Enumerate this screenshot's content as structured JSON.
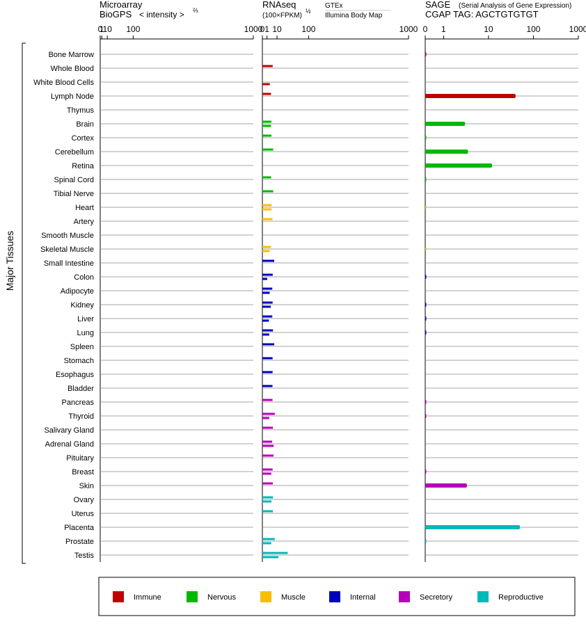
{
  "chart_data": {
    "type": "bar",
    "y_axis_label": "Major Tissues",
    "tissues": [
      "Bone Marrow",
      "Whole Blood",
      "White Blood Cells",
      "Lymph Node",
      "Thymus",
      "Brain",
      "Cortex",
      "Cerebellum",
      "Retina",
      "Spinal Cord",
      "Tibial Nerve",
      "Heart",
      "Artery",
      "Smooth Muscle",
      "Skeletal Muscle",
      "Small Intestine",
      "Colon",
      "Adipocyte",
      "Kidney",
      "Liver",
      "Lung",
      "Spleen",
      "Stomach",
      "Esophagus",
      "Bladder",
      "Pancreas",
      "Thyroid",
      "Salivary Gland",
      "Adrenal Gland",
      "Pituitary",
      "Breast",
      "Skin",
      "Ovary",
      "Uterus",
      "Placenta",
      "Prostate",
      "Testis"
    ],
    "tissue_groups": [
      "Immune",
      "Immune",
      "Immune",
      "Immune",
      "Immune",
      "Nervous",
      "Nervous",
      "Nervous",
      "Nervous",
      "Nervous",
      "Nervous",
      "Muscle",
      "Muscle",
      "Muscle",
      "Muscle",
      "Internal",
      "Internal",
      "Internal",
      "Internal",
      "Internal",
      "Internal",
      "Internal",
      "Internal",
      "Internal",
      "Internal",
      "Secretory",
      "Secretory",
      "Secretory",
      "Secretory",
      "Secretory",
      "Secretory",
      "Secretory",
      "Reproductive",
      "Reproductive",
      "Reproductive",
      "Reproductive",
      "Reproductive"
    ],
    "panels": [
      {
        "id": "microarray",
        "title_line1": "Microarray",
        "title_line2": "BioGPS",
        "unit_label": "< intensity >",
        "unit_superscript": "⅔",
        "tick_labels": [
          "0",
          "1",
          "10",
          "100",
          "1000"
        ],
        "values": [
          null,
          null,
          null,
          null,
          null,
          null,
          null,
          null,
          null,
          null,
          null,
          null,
          null,
          null,
          null,
          null,
          null,
          null,
          null,
          null,
          null,
          null,
          null,
          null,
          null,
          null,
          null,
          null,
          null,
          null,
          null,
          null,
          null,
          null,
          null,
          null,
          null
        ]
      },
      {
        "id": "rnaseq",
        "title_line1": "RNAseq",
        "unit_label": "(100×FPKM)",
        "unit_superscript": "½",
        "tick_labels": [
          "0",
          "1",
          "10",
          "100",
          "1000"
        ],
        "series": [
          {
            "name": "GTEx",
            "values": [
              null,
              5.0,
              null,
              3.5,
              null,
              3.8,
              3.9,
              5.5,
              null,
              3.6,
              5.5,
              4.0,
              4.8,
              null,
              3.5,
              6.6,
              5.0,
              4.6,
              4.9,
              4.6,
              5.3,
              6.6,
              4.9,
              4.9,
              4.8,
              4.8,
              7.2,
              5.2,
              4.5,
              5.8,
              4.9,
              5.1,
              5.3,
              5.2,
              null,
              7.2,
              30.0
            ]
          },
          {
            "name": "Illumina Body Map",
            "values": [
              null,
              null,
              2.6,
              null,
              null,
              3.5,
              null,
              null,
              null,
              null,
              null,
              3.8,
              null,
              null,
              2.5,
              null,
              1.1,
              2.5,
              3.3,
              2.0,
              2.2,
              null,
              null,
              null,
              null,
              null,
              2.2,
              null,
              6.0,
              null,
              3.7,
              null,
              3.9,
              null,
              null,
              3.7,
              12.0
            ]
          }
        ]
      },
      {
        "id": "sage",
        "title_line1": "SAGE",
        "title_note": "(Serial Analysis of Gene Expression)",
        "tag_label": "CGAP TAG: AGCTGTGTGT",
        "tick_labels": [
          "0",
          "1",
          "10",
          "100",
          "1000"
        ],
        "values": [
          0.05,
          null,
          null,
          40,
          null,
          3.0,
          0.05,
          3.5,
          12,
          0.05,
          null,
          0.05,
          null,
          null,
          0.05,
          null,
          0.05,
          null,
          0.05,
          0.05,
          0.05,
          null,
          null,
          null,
          null,
          0.05,
          0.05,
          null,
          null,
          null,
          0.05,
          3.3,
          null,
          null,
          50,
          0.05,
          null
        ]
      }
    ],
    "legend": [
      {
        "name": "Immune",
        "color": "#c00000"
      },
      {
        "name": "Nervous",
        "color": "#00b800"
      },
      {
        "name": "Muscle",
        "color": "#f8be00"
      },
      {
        "name": "Internal",
        "color": "#0000b8"
      },
      {
        "name": "Secretory",
        "color": "#b800b8"
      },
      {
        "name": "Reproductive",
        "color": "#00b8b8"
      }
    ],
    "colors": {
      "gtex_label": "#000080",
      "sage_tag": "#000080",
      "gridline": "#888888"
    }
  }
}
